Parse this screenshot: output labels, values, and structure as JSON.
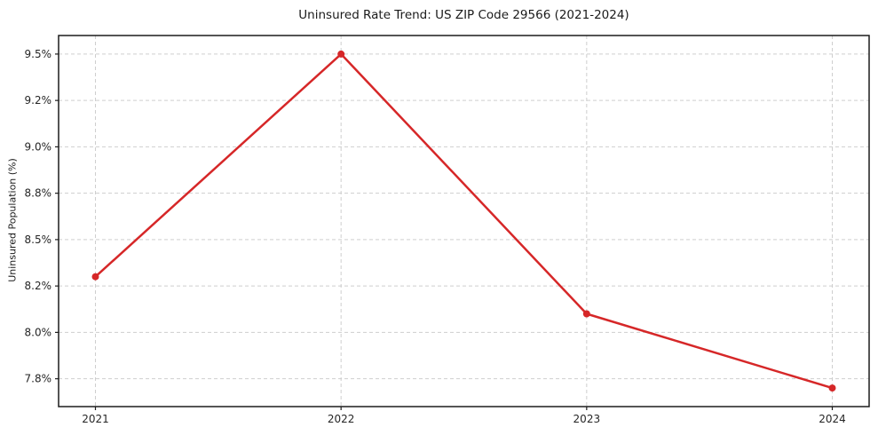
{
  "chart_data": {
    "type": "line",
    "title": "Uninsured Rate Trend: US ZIP Code 29566 (2021-2024)",
    "xlabel": "",
    "ylabel": "Uninsured Population (%)",
    "x": [
      2021,
      2022,
      2023,
      2024
    ],
    "series": [
      {
        "values": [
          8.3,
          9.5,
          8.1,
          7.7
        ]
      }
    ],
    "xlim": [
      2020.85,
      2024.15
    ],
    "ylim": [
      7.6,
      9.6
    ],
    "xticks": [
      {
        "value": 2021,
        "label": "2021"
      },
      {
        "value": 2022,
        "label": "2022"
      },
      {
        "value": 2023,
        "label": "2023"
      },
      {
        "value": 2024,
        "label": "2024"
      }
    ],
    "yticks": [
      {
        "value": 7.75,
        "label": "7.8%"
      },
      {
        "value": 8.0,
        "label": "8.0%"
      },
      {
        "value": 8.25,
        "label": "8.2%"
      },
      {
        "value": 8.5,
        "label": "8.5%"
      },
      {
        "value": 8.75,
        "label": "8.8%"
      },
      {
        "value": 9.0,
        "label": "9.0%"
      },
      {
        "value": 9.25,
        "label": "9.2%"
      },
      {
        "value": 9.5,
        "label": "9.5%"
      }
    ],
    "grid": {
      "visible": true,
      "style": "dashed",
      "axes": "both"
    },
    "legend": {
      "visible": false
    },
    "colors": {
      "line": "#d62728",
      "marker": "#d62728",
      "grid": "#c9c9c9",
      "spine": "#1c1c1c",
      "tick_text": "#262626",
      "title_text": "#1a1a1a",
      "background": "#ffffff"
    }
  }
}
